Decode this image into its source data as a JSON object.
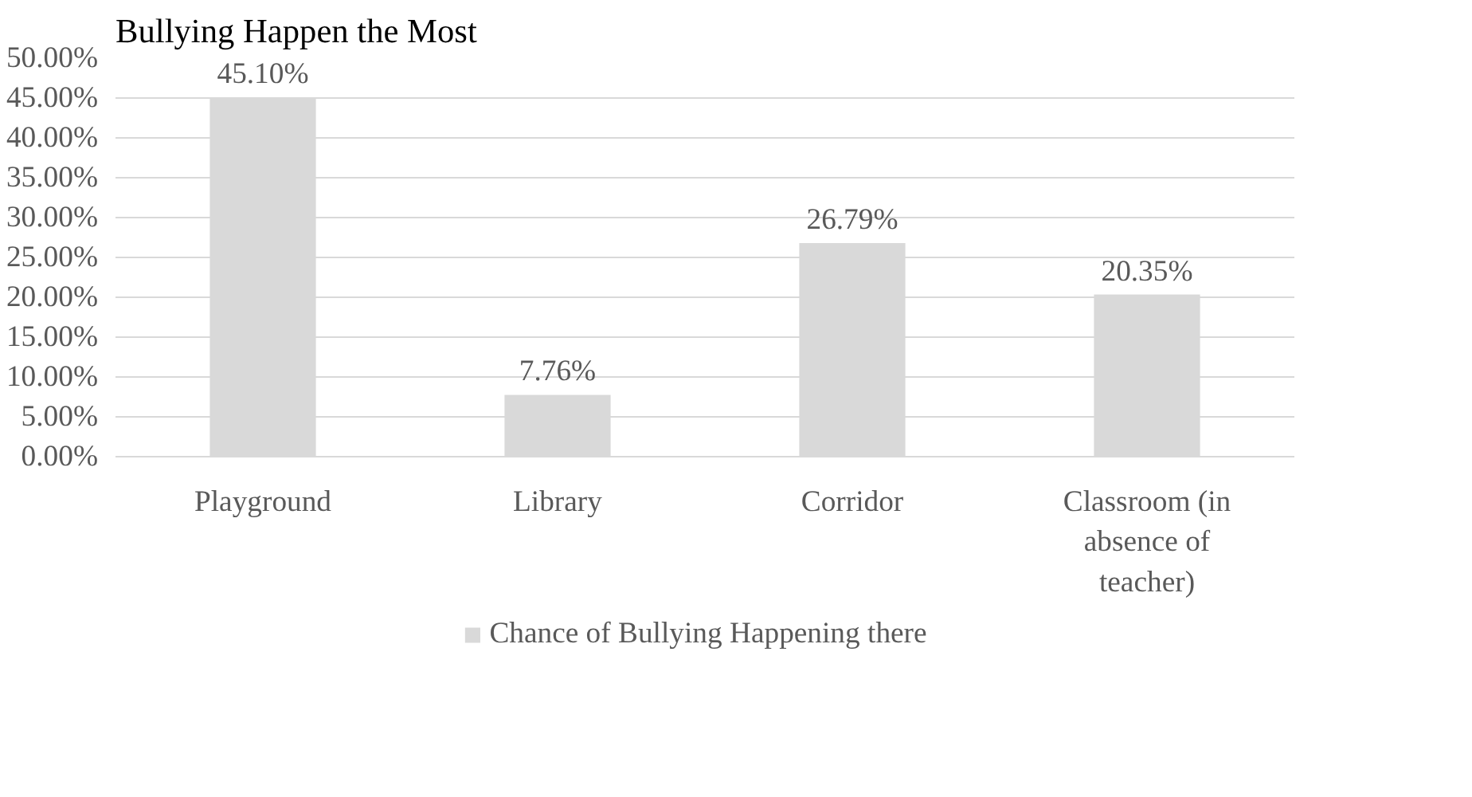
{
  "chart_data": {
    "type": "bar",
    "title": "Bullying Happen the Most",
    "categories": [
      "Playground",
      "Library",
      "Corridor",
      "Classroom (in absence of teacher)"
    ],
    "series": [
      {
        "name": "Chance of Bullying Happening there",
        "color": "#d9d9d9",
        "values": [
          45.1,
          7.76,
          26.79,
          20.35
        ]
      }
    ],
    "ylim": [
      0,
      50
    ],
    "yticks": [
      {
        "value": 0,
        "label": "0.00%"
      },
      {
        "value": 5,
        "label": "5.00%"
      },
      {
        "value": 10,
        "label": "10.00%"
      },
      {
        "value": 15,
        "label": "15.00%"
      },
      {
        "value": 20,
        "label": "20.00%"
      },
      {
        "value": 25,
        "label": "25.00%"
      },
      {
        "value": 30,
        "label": "30.00%"
      },
      {
        "value": 35,
        "label": "35.00%"
      },
      {
        "value": 40,
        "label": "40.00%"
      },
      {
        "value": 45,
        "label": "45.00%"
      },
      {
        "value": 50,
        "label": "50.00%"
      }
    ],
    "value_labels": [
      "45.10%",
      "7.76%",
      "26.79%",
      "20.35%"
    ],
    "grid": "y",
    "legend": "bottom"
  }
}
